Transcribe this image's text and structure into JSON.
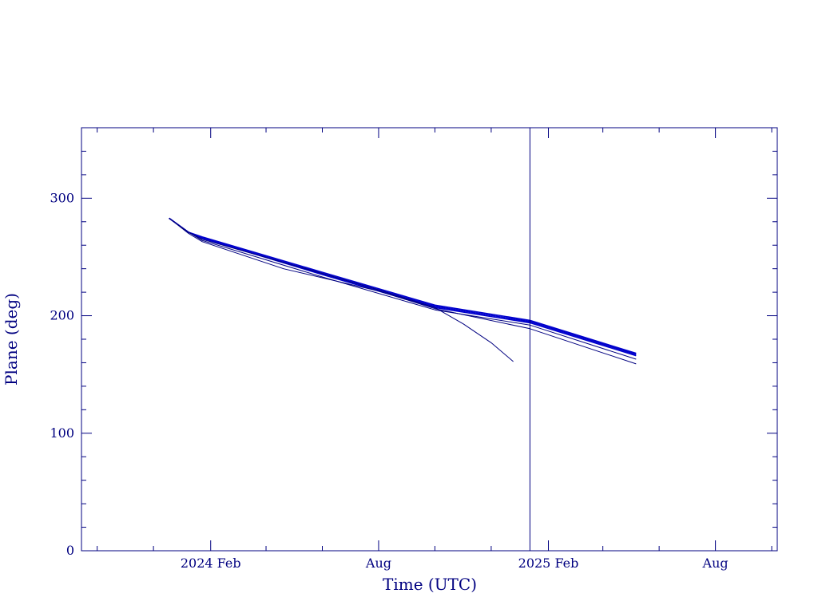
{
  "colors": {
    "axis": "#000080",
    "text": "#000080",
    "series_main": "#0000cc",
    "series_secondary": "#000080",
    "background": "#ffffff"
  },
  "chart_data": {
    "type": "line",
    "title": "",
    "xlabel": "Time (UTC)",
    "ylabel": "Plane (deg)",
    "xlim": [
      "2023-09-14",
      "2025-10-07"
    ],
    "ylim": [
      0,
      360
    ],
    "x_tick_labels": [
      {
        "label": "2024 Feb",
        "date": "2024-02-01"
      },
      {
        "label": "Aug",
        "date": "2024-08-01"
      },
      {
        "label": "2025 Feb",
        "date": "2025-02-01"
      },
      {
        "label": "Aug",
        "date": "2025-08-01"
      }
    ],
    "x_minor_tick_dates": [
      "2023-10-01",
      "2023-12-01",
      "2024-02-01",
      "2024-04-01",
      "2024-06-01",
      "2024-08-01",
      "2024-10-01",
      "2024-12-01",
      "2025-02-01",
      "2025-04-01",
      "2025-06-01",
      "2025-08-01",
      "2025-10-01"
    ],
    "y_ticks": [
      0,
      100,
      200,
      300
    ],
    "y_minor_step": 20,
    "grid": false,
    "vertical_marker": {
      "date": "2025-01-12"
    },
    "series": [
      {
        "style": "main",
        "points": [
          [
            "2023-12-18",
            283
          ],
          [
            "2024-01-08",
            271
          ],
          [
            "2024-01-23",
            267
          ],
          [
            "2024-06-01",
            237
          ],
          [
            "2024-10-01",
            209
          ],
          [
            "2025-01-12",
            196
          ],
          [
            "2025-05-07",
            168
          ]
        ]
      },
      {
        "style": "main",
        "points": [
          [
            "2023-12-18",
            283
          ],
          [
            "2024-01-08",
            271
          ],
          [
            "2024-01-23",
            266
          ],
          [
            "2024-06-01",
            236
          ],
          [
            "2024-10-01",
            208
          ],
          [
            "2025-01-12",
            195
          ],
          [
            "2025-05-07",
            167
          ]
        ]
      },
      {
        "style": "main",
        "points": [
          [
            "2023-12-18",
            283
          ],
          [
            "2024-01-08",
            271
          ],
          [
            "2024-01-23",
            266
          ],
          [
            "2024-06-01",
            235
          ],
          [
            "2024-10-01",
            207
          ],
          [
            "2025-01-12",
            194
          ],
          [
            "2025-05-07",
            166
          ]
        ]
      },
      {
        "style": "secondary",
        "points": [
          [
            "2023-12-18",
            283
          ],
          [
            "2024-01-08",
            271
          ],
          [
            "2024-01-23",
            264
          ],
          [
            "2024-06-01",
            233
          ],
          [
            "2024-10-01",
            205
          ],
          [
            "2025-01-12",
            192
          ],
          [
            "2025-05-07",
            163
          ]
        ]
      },
      {
        "style": "secondary",
        "points": [
          [
            "2023-12-18",
            283
          ],
          [
            "2024-01-08",
            270
          ],
          [
            "2024-01-23",
            263
          ],
          [
            "2024-04-20",
            240
          ],
          [
            "2024-08-01",
            221
          ],
          [
            "2024-10-01",
            206
          ],
          [
            "2025-01-12",
            189
          ],
          [
            "2025-05-07",
            159
          ]
        ]
      },
      {
        "style": "secondary",
        "points": [
          [
            "2023-12-18",
            283
          ],
          [
            "2024-01-08",
            271
          ],
          [
            "2024-01-23",
            265
          ],
          [
            "2024-06-01",
            236
          ],
          [
            "2024-08-01",
            222
          ],
          [
            "2024-10-01",
            207
          ],
          [
            "2024-11-01",
            193
          ],
          [
            "2024-12-01",
            177
          ],
          [
            "2024-12-25",
            161
          ]
        ]
      }
    ]
  }
}
